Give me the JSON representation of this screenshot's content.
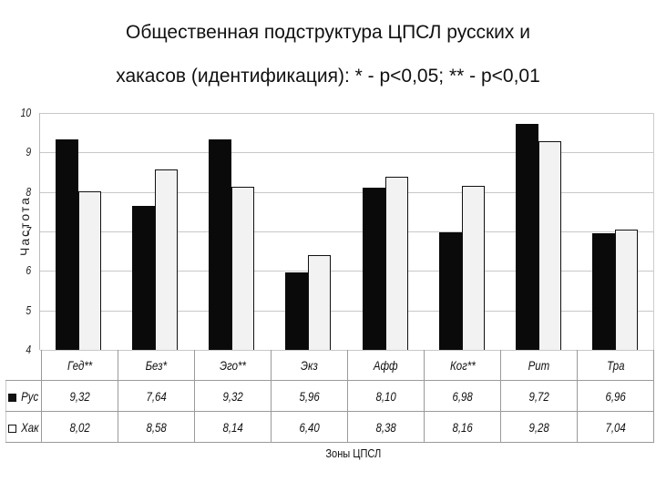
{
  "title": {
    "line1": "Общественная подструктура ЦПСЛ русских и",
    "line2": "хакасов (идентификация): * - p<0,05; ** - p<0,01"
  },
  "colors": {
    "rus": "#0a0a0a",
    "hak": "#f2f2f2",
    "grid": "#c8c8c8"
  },
  "chart_data": {
    "type": "bar",
    "title": "Общественная подструктура ЦПСЛ русских и хакасов (идентификация): * - p<0,05; ** - p<0,01",
    "xlabel": "Зоны ЦПСЛ",
    "ylabel": "Частота",
    "ylim": [
      4,
      10
    ],
    "yticks": [
      4,
      5,
      6,
      7,
      8,
      9,
      10
    ],
    "grid": true,
    "legend_position": "data-table-left",
    "categories": [
      "Гед**",
      "Без*",
      "Эго**",
      "Экз",
      "Афф",
      "Ког**",
      "Рит",
      "Тра"
    ],
    "series": [
      {
        "name": "Рус",
        "color": "#0a0a0a",
        "values": [
          9.32,
          7.64,
          9.32,
          5.96,
          8.1,
          6.98,
          9.72,
          6.96
        ]
      },
      {
        "name": "Хак",
        "color": "#f2f2f2",
        "values": [
          8.02,
          8.58,
          8.14,
          6.4,
          8.38,
          8.16,
          9.28,
          7.04
        ]
      }
    ]
  },
  "table": {
    "rows": [
      {
        "label": "Рус",
        "cells": [
          "9,32",
          "7,64",
          "9,32",
          "5,96",
          "8,10",
          "6,98",
          "9,72",
          "6,96"
        ]
      },
      {
        "label": "Хак",
        "cells": [
          "8,02",
          "8,58",
          "8,14",
          "6,40",
          "8,38",
          "8,16",
          "9,28",
          "7,04"
        ]
      }
    ]
  }
}
